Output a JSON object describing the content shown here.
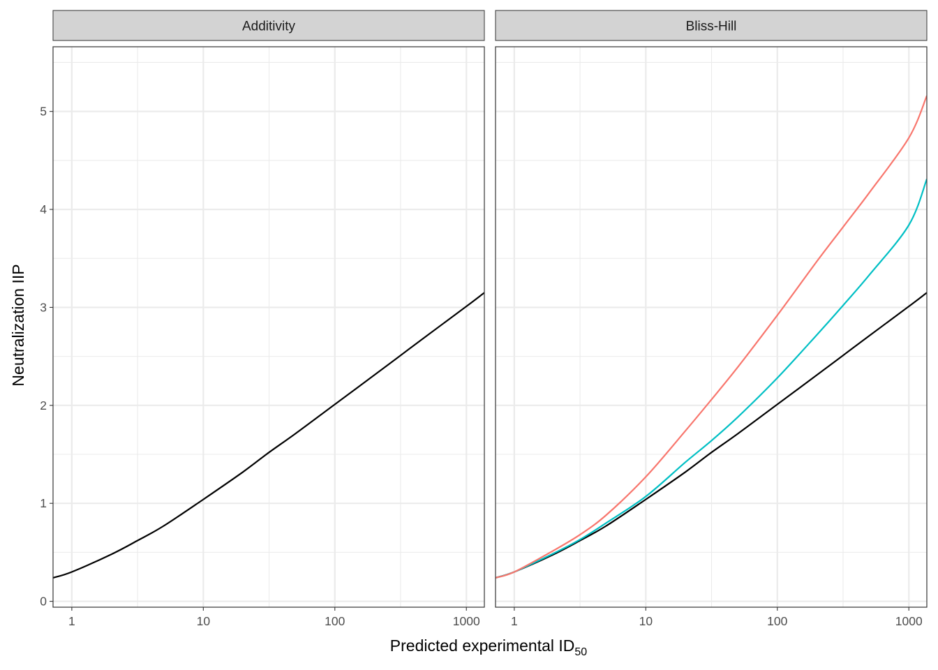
{
  "chart_data": {
    "type": "line",
    "xlabel": "Predicted experimental ID",
    "xlabel_subscript": "50",
    "ylabel": "Neutralization IIP",
    "x_scale": "log10",
    "xlim": [
      0.72,
      1370
    ],
    "ylim": [
      -0.06,
      5.66
    ],
    "x_ticks": [
      1,
      10,
      100,
      1000
    ],
    "x_tick_labels": [
      "1",
      "10",
      "100",
      "1000"
    ],
    "y_ticks": [
      0,
      1,
      2,
      3,
      4,
      5
    ],
    "y_tick_labels": [
      "0",
      "1",
      "2",
      "3",
      "4",
      "5"
    ],
    "grid": true,
    "legend": "none",
    "panels": [
      {
        "strip": "Additivity",
        "series": [
          {
            "color": "#000000",
            "x": [
              0.72,
              1,
              2,
              3.16,
              5,
              10,
              20,
              31.6,
              50,
              100,
              200,
              316,
              500,
              1000,
              1370
            ],
            "y": [
              0.24,
              0.3,
              0.48,
              0.62,
              0.77,
              1.04,
              1.32,
              1.52,
              1.71,
              2.01,
              2.31,
              2.51,
              2.71,
              3.01,
              3.15
            ]
          }
        ]
      },
      {
        "strip": "Bliss-Hill",
        "series": [
          {
            "color": "#000000",
            "x": [
              0.72,
              1,
              2,
              3.16,
              5,
              10,
              20,
              31.6,
              50,
              100,
              200,
              316,
              500,
              1000,
              1370
            ],
            "y": [
              0.24,
              0.3,
              0.48,
              0.62,
              0.77,
              1.04,
              1.32,
              1.52,
              1.71,
              2.01,
              2.31,
              2.51,
              2.71,
              3.01,
              3.15
            ]
          },
          {
            "color": "#00bfc4",
            "x": [
              0.72,
              1,
              2,
              3.16,
              5,
              10,
              20,
              31.6,
              50,
              100,
              200,
              316,
              500,
              1000,
              1370
            ],
            "y": [
              0.24,
              0.3,
              0.49,
              0.63,
              0.8,
              1.07,
              1.42,
              1.64,
              1.88,
              2.28,
              2.72,
              3.02,
              3.33,
              3.84,
              4.31
            ]
          },
          {
            "color": "#f8766d",
            "x": [
              0.72,
              1,
              2,
              3.16,
              5,
              10,
              20,
              31.6,
              50,
              100,
              200,
              316,
              500,
              1000,
              1370
            ],
            "y": [
              0.24,
              0.3,
              0.52,
              0.68,
              0.88,
              1.27,
              1.74,
              2.06,
              2.39,
              2.92,
              3.47,
              3.82,
              4.17,
              4.73,
              5.16
            ]
          }
        ]
      }
    ]
  }
}
